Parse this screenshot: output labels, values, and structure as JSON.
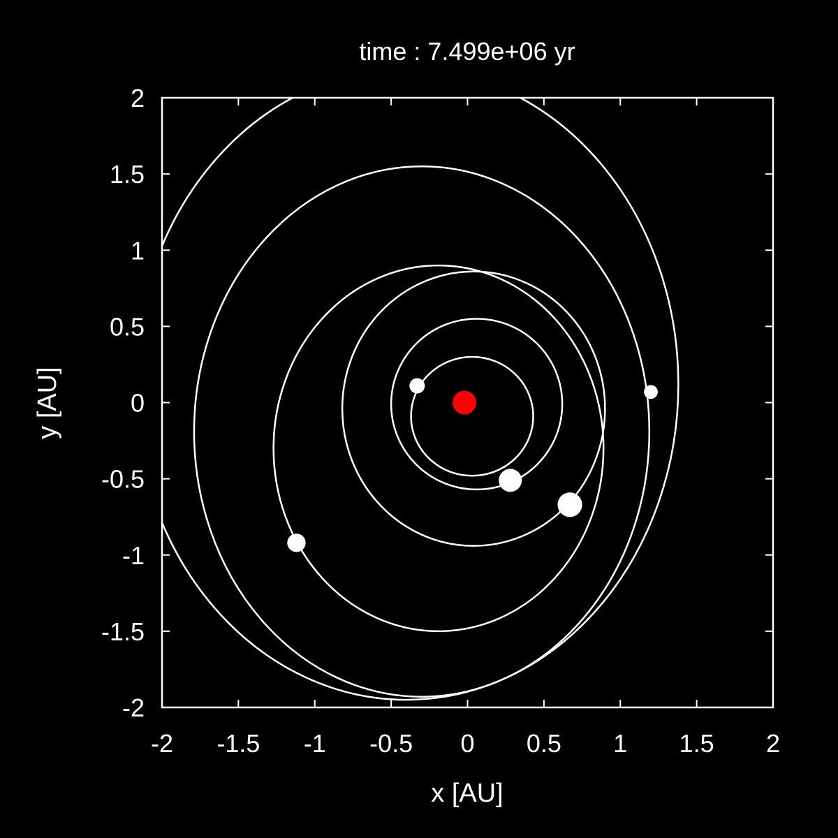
{
  "chart_data": {
    "type": "scatter",
    "title": "time : 7.499e+06 yr",
    "xlabel": "x [AU]",
    "ylabel": "y [AU]",
    "xlim": [
      -2,
      2
    ],
    "ylim": [
      -2,
      2
    ],
    "xticks": [
      -2,
      -1.5,
      -1,
      -0.5,
      0,
      0.5,
      1,
      1.5,
      2
    ],
    "yticks": [
      -2,
      -1.5,
      -1,
      -0.5,
      0,
      0.5,
      1,
      1.5,
      2
    ],
    "xtick_labels": [
      "-2",
      "-1.5",
      "-1",
      "-0.5",
      "0",
      "0.5",
      "1",
      "1.5",
      "2"
    ],
    "ytick_labels": [
      "-2",
      "-1.5",
      "-1",
      "-0.5",
      "0",
      "0.5",
      "1",
      "1.5",
      "2"
    ],
    "grid": false,
    "star": {
      "x": -0.02,
      "y": 0.0,
      "color": "#ff0000"
    },
    "orbits": [
      {
        "cx": 0.03,
        "cy": -0.09,
        "rx": 0.4,
        "ry": 0.39
      },
      {
        "cx": 0.06,
        "cy": -0.01,
        "rx": 0.56,
        "ry": 0.56
      },
      {
        "cx": 0.04,
        "cy": -0.04,
        "rx": 0.86,
        "ry": 0.9
      },
      {
        "cx": -0.19,
        "cy": -0.3,
        "rx": 1.08,
        "ry": 1.2
      },
      {
        "cx": -0.3,
        "cy": -0.19,
        "rx": 1.49,
        "ry": 1.74
      },
      {
        "cx": -0.4,
        "cy": 0.12,
        "rx": 1.78,
        "ry": 2.07
      }
    ],
    "planets": [
      {
        "x": -0.33,
        "y": 0.11,
        "size": 1.0
      },
      {
        "x": 0.28,
        "y": -0.51,
        "size": 1.5
      },
      {
        "x": 0.67,
        "y": -0.67,
        "size": 1.6
      },
      {
        "x": 1.2,
        "y": 0.07,
        "size": 0.9
      },
      {
        "x": -1.12,
        "y": -0.92,
        "size": 1.2
      }
    ],
    "colors": {
      "background": "#000000",
      "foreground": "#ffffff",
      "star": "#ff0000",
      "planet": "#ffffff"
    }
  }
}
